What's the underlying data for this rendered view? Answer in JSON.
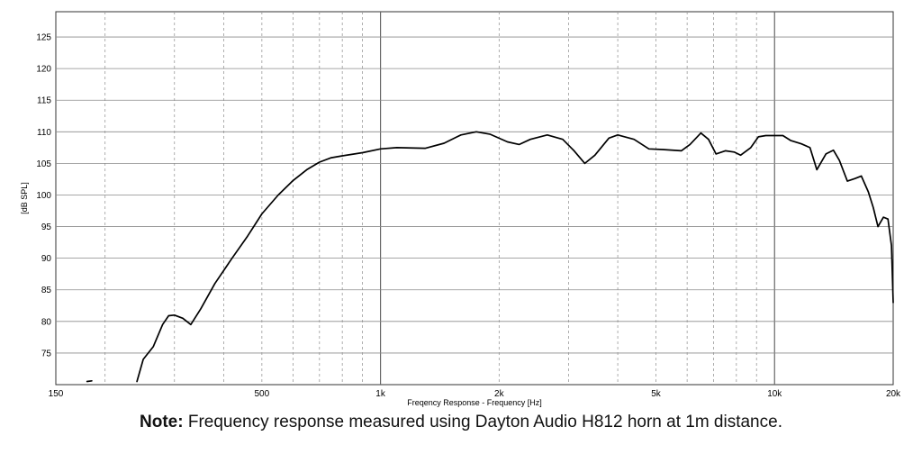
{
  "chart_data": {
    "type": "line",
    "xscale": "log",
    "xlim": [
      150,
      20000
    ],
    "ylim": [
      70,
      129
    ],
    "xlabel": "Freqency Response - Frequency [Hz]",
    "ylabel": "[dB SPL]",
    "x_ticks": [
      150,
      500,
      1000,
      2000,
      5000,
      10000,
      20000
    ],
    "x_tick_labels": [
      "150",
      "500",
      "1k",
      "2k",
      "5k",
      "10k",
      "20k"
    ],
    "y_ticks": [
      75,
      80,
      85,
      90,
      95,
      100,
      105,
      110,
      115,
      120,
      125
    ],
    "y_tick_labels": [
      "75",
      "80",
      "85",
      "90",
      "95",
      "100",
      "105",
      "110",
      "115",
      "120",
      "125"
    ],
    "grid": true,
    "series": [
      {
        "color": "#000000",
        "points": [
          [
            180,
            70.5
          ],
          [
            185,
            70.6
          ],
          [
            241,
            70.5
          ],
          [
            250,
            74.0
          ],
          [
            265,
            76.0
          ],
          [
            280,
            79.5
          ],
          [
            290,
            80.9
          ],
          [
            300,
            81.0
          ],
          [
            315,
            80.5
          ],
          [
            330,
            79.5
          ],
          [
            350,
            82.0
          ],
          [
            380,
            86.0
          ],
          [
            420,
            90.0
          ],
          [
            460,
            93.5
          ],
          [
            500,
            97.0
          ],
          [
            550,
            100.0
          ],
          [
            600,
            102.3
          ],
          [
            650,
            104.0
          ],
          [
            700,
            105.2
          ],
          [
            750,
            105.9
          ],
          [
            800,
            106.2
          ],
          [
            900,
            106.7
          ],
          [
            1000,
            107.3
          ],
          [
            1100,
            107.5
          ],
          [
            1300,
            107.4
          ],
          [
            1450,
            108.2
          ],
          [
            1600,
            109.5
          ],
          [
            1750,
            110.0
          ],
          [
            1900,
            109.6
          ],
          [
            2100,
            108.4
          ],
          [
            2250,
            108.0
          ],
          [
            2400,
            108.8
          ],
          [
            2650,
            109.5
          ],
          [
            2900,
            108.8
          ],
          [
            3100,
            107.0
          ],
          [
            3300,
            105.0
          ],
          [
            3500,
            106.3
          ],
          [
            3800,
            109.0
          ],
          [
            4000,
            109.5
          ],
          [
            4400,
            108.8
          ],
          [
            4800,
            107.3
          ],
          [
            5200,
            107.2
          ],
          [
            5800,
            107.0
          ],
          [
            6100,
            108.0
          ],
          [
            6500,
            109.8
          ],
          [
            6800,
            108.8
          ],
          [
            7100,
            106.5
          ],
          [
            7500,
            107.0
          ],
          [
            7900,
            106.8
          ],
          [
            8200,
            106.3
          ],
          [
            8700,
            107.5
          ],
          [
            9100,
            109.2
          ],
          [
            9500,
            109.4
          ],
          [
            10500,
            109.4
          ],
          [
            11000,
            108.6
          ],
          [
            11700,
            108.1
          ],
          [
            12300,
            107.5
          ],
          [
            12800,
            104.0
          ],
          [
            13500,
            106.5
          ],
          [
            14100,
            107.1
          ],
          [
            14600,
            105.5
          ],
          [
            15300,
            102.2
          ],
          [
            16000,
            102.6
          ],
          [
            16600,
            103.0
          ],
          [
            17300,
            100.5
          ],
          [
            17800,
            98.0
          ],
          [
            18300,
            95.0
          ],
          [
            18900,
            96.5
          ],
          [
            19400,
            96.2
          ],
          [
            19800,
            92.0
          ],
          [
            20000,
            83.0
          ]
        ]
      }
    ]
  },
  "note": {
    "bold": "Note:",
    "text": " Frequency response measured using Dayton Audio H812 horn at 1m distance."
  }
}
